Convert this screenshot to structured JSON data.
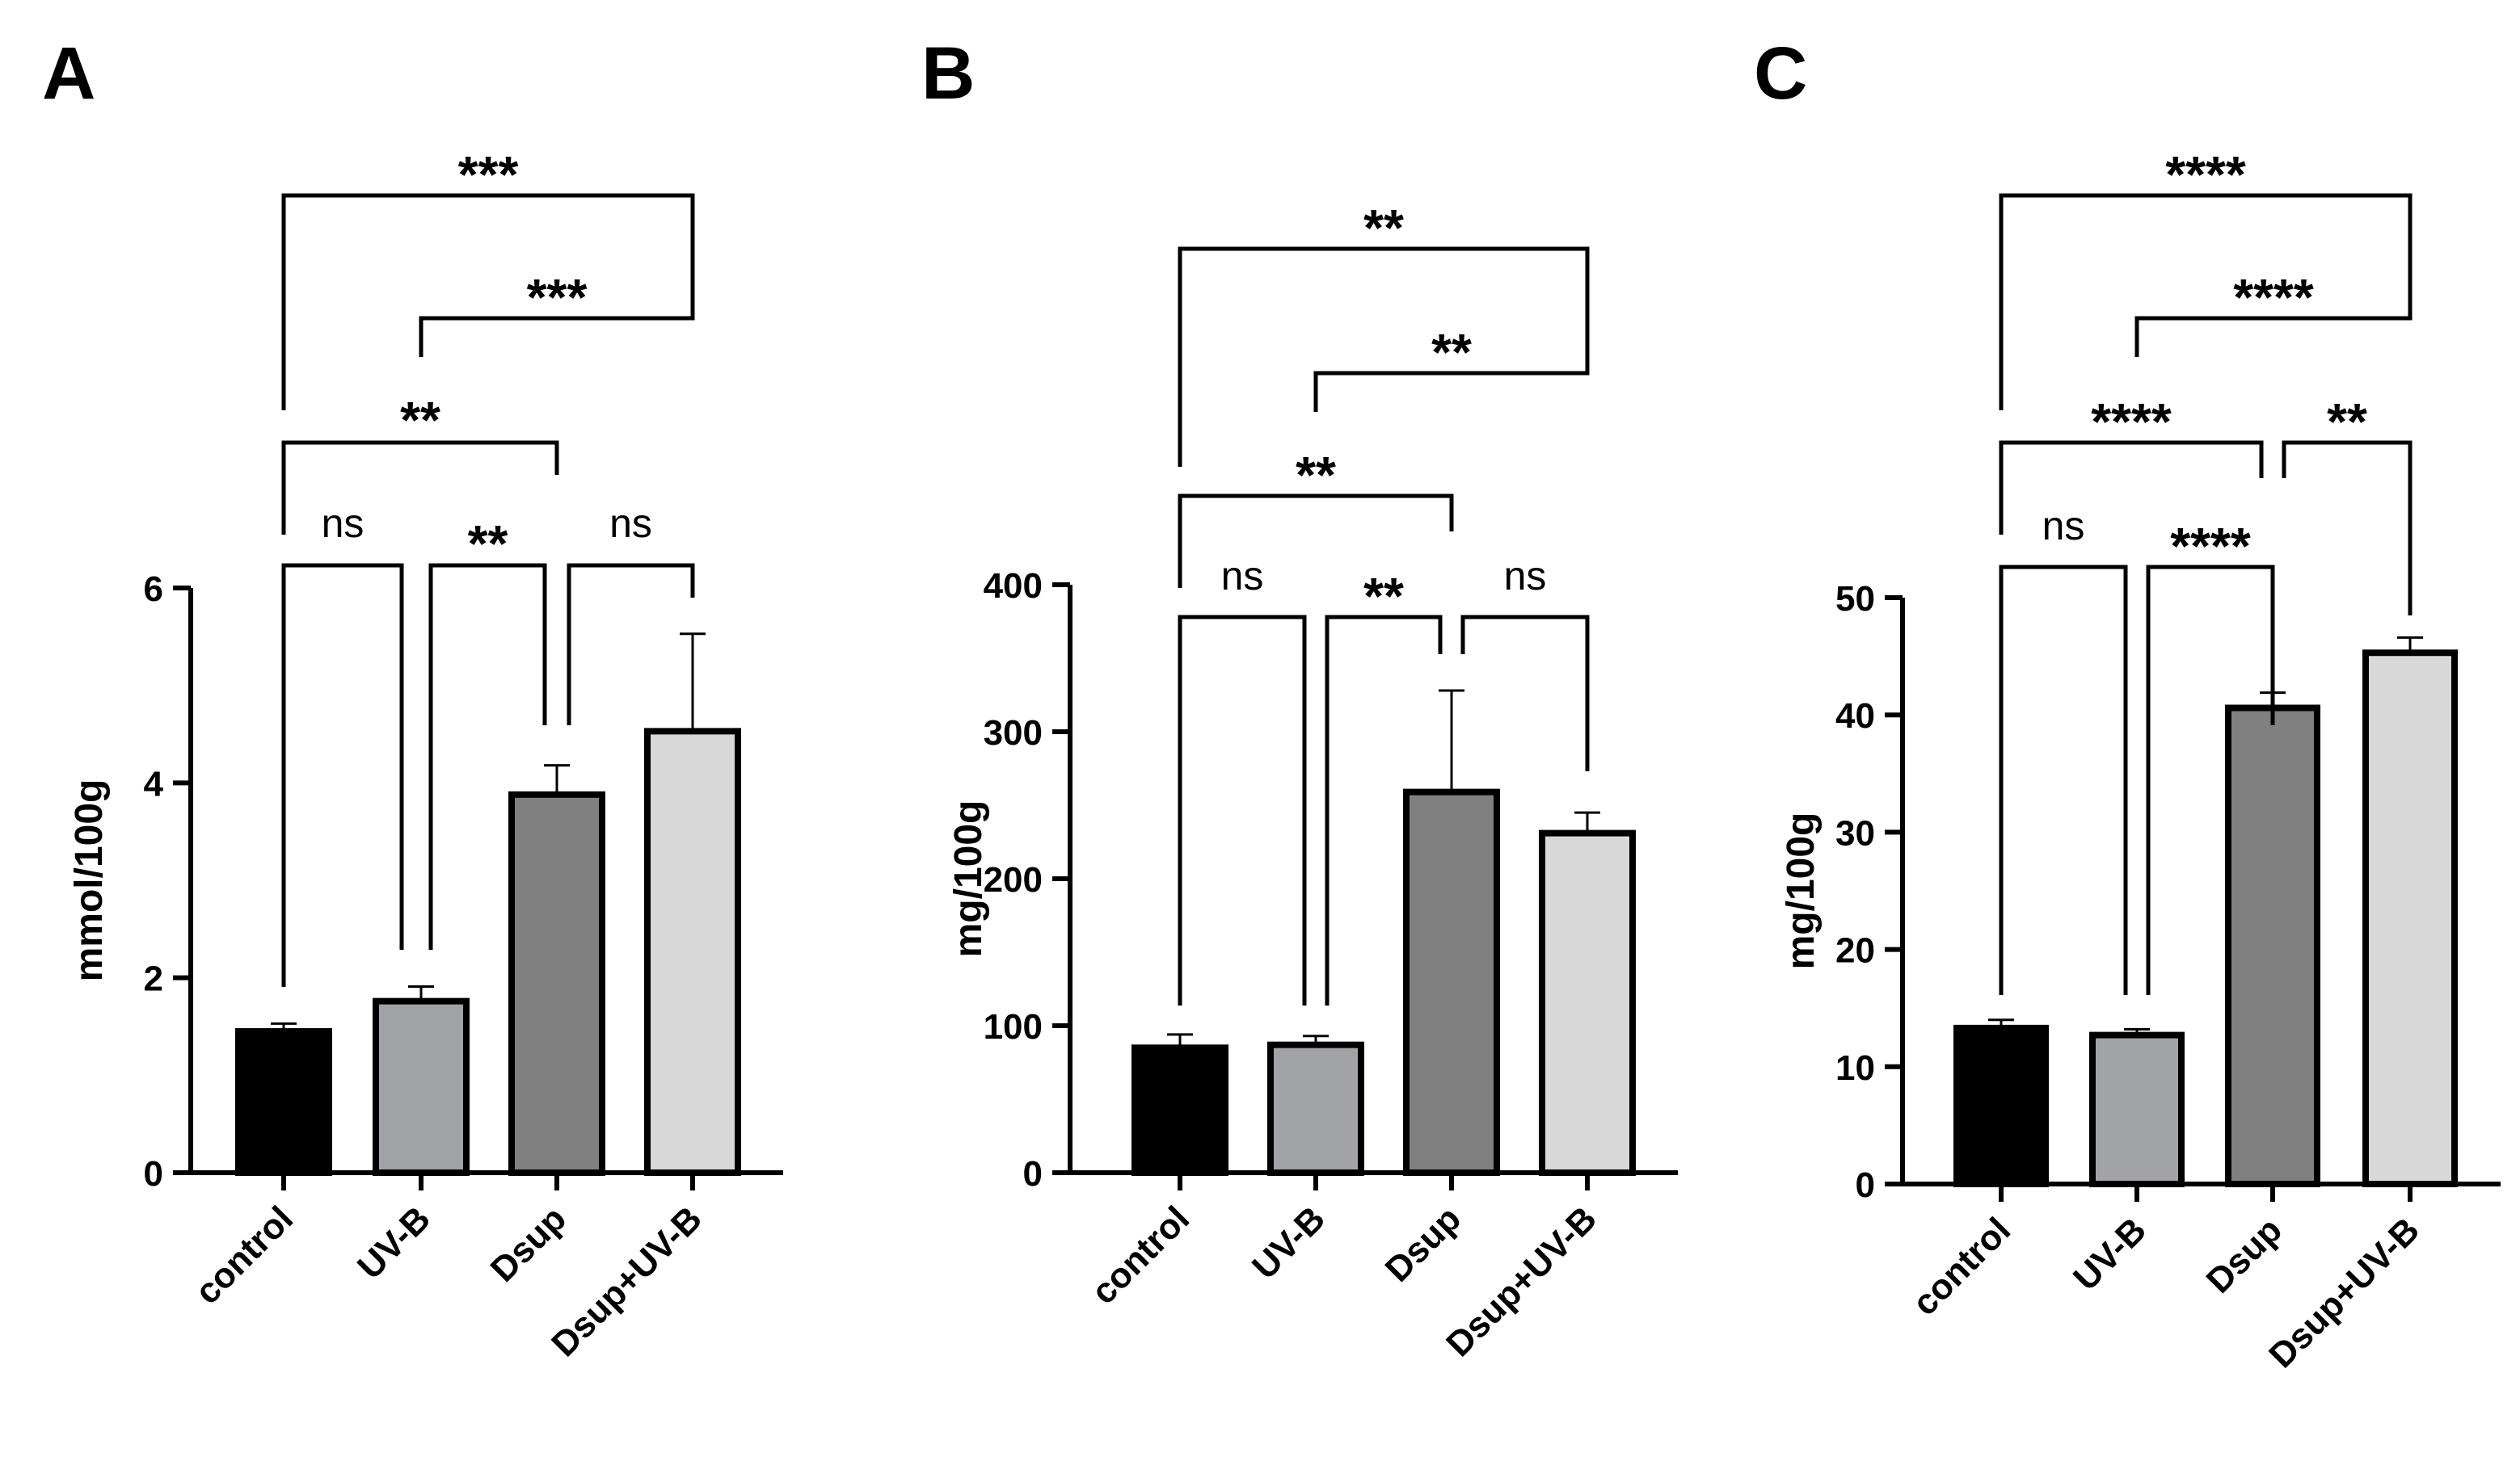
{
  "colors": {
    "control": "#000000",
    "UV-B": "#a2a3a6",
    "Dsup": "#808080",
    "Dsup+UV-B": "#d8d8d8",
    "stroke": "#000000"
  },
  "chart_data": [
    {
      "panel": "A",
      "type": "bar",
      "ylabel": "mmol/100g",
      "xlabel": "",
      "categories": [
        "control",
        "UV-B",
        "Dsup",
        "Dsup+UV-B"
      ],
      "values": [
        1.45,
        1.76,
        3.88,
        4.53
      ],
      "errors": [
        0.08,
        0.15,
        0.3,
        1.0
      ],
      "ylim": [
        0,
        6
      ],
      "yticks": [
        0,
        2,
        4,
        6
      ],
      "tick_labels": [
        "0",
        "2",
        "4",
        "6"
      ],
      "grid": false,
      "comparisons": [
        {
          "from": 0,
          "to": 1,
          "label": "ns"
        },
        {
          "from": 1,
          "to": 2,
          "label": "**"
        },
        {
          "from": 2,
          "to": 3,
          "label": "ns"
        },
        {
          "from": 0,
          "to": 2,
          "label": "**"
        },
        {
          "from": 1,
          "to": 3,
          "label": "***"
        },
        {
          "from": 0,
          "to": 3,
          "label": "***"
        }
      ]
    },
    {
      "panel": "B",
      "type": "bar",
      "ylabel": "mg/100g",
      "xlabel": "",
      "categories": [
        "control",
        "UV-B",
        "Dsup",
        "Dsup+UV-B"
      ],
      "values": [
        85,
        87,
        259,
        231
      ],
      "errors": [
        9,
        6,
        69,
        14
      ],
      "ylim": [
        0,
        400
      ],
      "yticks": [
        0,
        100,
        200,
        300,
        400
      ],
      "tick_labels": [
        "0",
        "100",
        "200",
        "300",
        "400"
      ],
      "grid": false,
      "comparisons": [
        {
          "from": 0,
          "to": 1,
          "label": "ns"
        },
        {
          "from": 1,
          "to": 2,
          "label": "**"
        },
        {
          "from": 2,
          "to": 3,
          "label": "ns"
        },
        {
          "from": 0,
          "to": 2,
          "label": "**"
        },
        {
          "from": 1,
          "to": 3,
          "label": "**"
        },
        {
          "from": 0,
          "to": 3,
          "label": "**"
        }
      ]
    },
    {
      "panel": "C",
      "type": "bar",
      "ylabel": "mg/100g",
      "xlabel": "",
      "categories": [
        "control",
        "UV-B",
        "Dsup",
        "Dsup+UV-B"
      ],
      "values": [
        13.3,
        12.7,
        40.6,
        45.3
      ],
      "errors": [
        0.7,
        0.5,
        1.3,
        1.3
      ],
      "ylim": [
        0,
        50
      ],
      "yticks": [
        0,
        10,
        20,
        30,
        40,
        50
      ],
      "tick_labels": [
        "0",
        "10",
        "20",
        "30",
        "40",
        "50"
      ],
      "grid": false,
      "comparisons": [
        {
          "from": 0,
          "to": 1,
          "label": "ns"
        },
        {
          "from": 1,
          "to": 2,
          "label": "****"
        },
        {
          "from": 2,
          "to": 3,
          "label": "**"
        },
        {
          "from": 0,
          "to": 2,
          "label": "****"
        },
        {
          "from": 1,
          "to": 3,
          "label": "****"
        },
        {
          "from": 0,
          "to": 3,
          "label": "****"
        }
      ]
    }
  ]
}
